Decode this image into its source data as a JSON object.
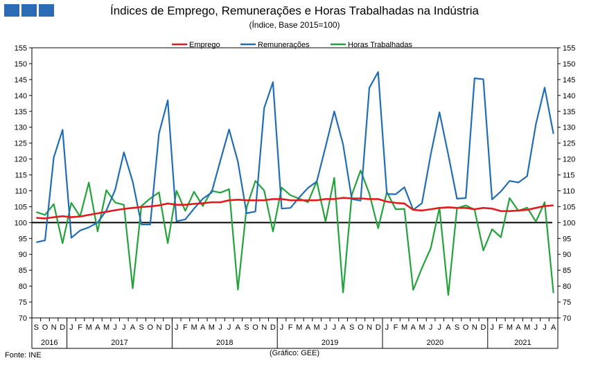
{
  "header": {
    "title": "Índices de Emprego, Remunerações e Horas Trabalhadas na Indústria",
    "subtitle": "(Índice, Base 2015=100)"
  },
  "logo": {
    "colors": [
      "#2b6bb5",
      "#2b6bb5",
      "#2b6bb5"
    ]
  },
  "footer": {
    "source": "Fonte: INE",
    "credit": "(Gráfico: GEE)"
  },
  "chart_data": {
    "type": "line",
    "ylim": [
      70,
      155
    ],
    "yticks": [
      70,
      75,
      80,
      85,
      90,
      95,
      100,
      105,
      110,
      115,
      120,
      125,
      130,
      135,
      140,
      145,
      150,
      155
    ],
    "month_labels": [
      "S",
      "O",
      "N",
      "D",
      "J",
      "F",
      "M",
      "A",
      "M",
      "J",
      "J",
      "A",
      "S",
      "O",
      "N",
      "D",
      "J",
      "F",
      "M",
      "A",
      "M",
      "J",
      "J",
      "A",
      "S",
      "O",
      "N",
      "D",
      "J",
      "F",
      "M",
      "A",
      "M",
      "J",
      "J",
      "A",
      "S",
      "O",
      "N",
      "D",
      "J",
      "F",
      "M",
      "A",
      "M",
      "J",
      "J",
      "A",
      "S",
      "O",
      "N",
      "D",
      "J",
      "F",
      "M",
      "A",
      "M",
      "J",
      "J",
      "A"
    ],
    "years": [
      {
        "label": "2016",
        "start": 0,
        "count": 4
      },
      {
        "label": "2017",
        "start": 4,
        "count": 12
      },
      {
        "label": "2018",
        "start": 16,
        "count": 12
      },
      {
        "label": "2019",
        "start": 28,
        "count": 12
      },
      {
        "label": "2020",
        "start": 40,
        "count": 12
      },
      {
        "label": "2021",
        "start": 52,
        "count": 8
      }
    ],
    "reference_line": 100,
    "legend_position": "top-center",
    "series": [
      {
        "name": "Emprego",
        "color": "#e31a1c",
        "values": [
          101.5,
          101.3,
          101.7,
          102.0,
          101.7,
          101.9,
          102.4,
          102.9,
          103.4,
          103.9,
          104.3,
          104.6,
          104.9,
          105.1,
          105.4,
          106.0,
          105.6,
          105.6,
          105.9,
          106.1,
          106.4,
          106.4,
          107.0,
          107.2,
          107.0,
          107.0,
          107.0,
          107.4,
          107.4,
          107.0,
          107.0,
          107.0,
          107.0,
          107.4,
          107.4,
          107.8,
          107.6,
          107.6,
          107.4,
          107.4,
          106.6,
          106.2,
          106.0,
          104.0,
          103.8,
          104.2,
          104.6,
          104.8,
          104.6,
          104.6,
          104.2,
          104.6,
          104.4,
          103.6,
          103.6,
          103.8,
          104.0,
          104.6,
          105.2,
          105.4
        ]
      },
      {
        "name": "Remunerações",
        "color": "#1f6db5",
        "values": [
          93.8,
          94.4,
          120.5,
          129.2,
          95.2,
          97.5,
          98.5,
          100.0,
          103.8,
          110.3,
          122.1,
          112.9,
          99.4,
          99.4,
          128.0,
          138.5,
          100.4,
          101.0,
          104.4,
          107.5,
          109.4,
          119.5,
          129.3,
          119.2,
          102.9,
          103.5,
          136.0,
          144.2,
          104.4,
          104.6,
          107.9,
          110.9,
          112.9,
          123.8,
          135.0,
          124.6,
          107.4,
          106.9,
          142.4,
          147.4,
          109.0,
          108.9,
          111.1,
          104.0,
          106.1,
          121.4,
          134.7,
          121.4,
          107.5,
          107.7,
          145.4,
          145.1,
          107.3,
          109.8,
          113.1,
          112.6,
          114.6,
          131.0,
          142.5,
          127.9
        ]
      },
      {
        "name": "Horas Trabalhadas",
        "color": "#22a33a",
        "values": [
          103.3,
          102.4,
          105.8,
          93.5,
          106.2,
          101.9,
          112.6,
          97.2,
          110.2,
          106.3,
          105.6,
          79.3,
          105.2,
          107.6,
          109.5,
          93.5,
          110.0,
          103.7,
          109.7,
          105.2,
          110.0,
          109.4,
          110.5,
          78.9,
          104.8,
          113.1,
          110.1,
          97.2,
          111.0,
          108.6,
          107.5,
          106.4,
          113.0,
          100.3,
          114.1,
          78.0,
          108.7,
          116.4,
          109.1,
          98.2,
          109.6,
          104.2,
          104.3,
          78.8,
          85.7,
          91.9,
          104.7,
          77.2,
          104.5,
          105.4,
          104.1,
          91.2,
          97.9,
          95.4,
          107.7,
          103.7,
          104.7,
          100.3,
          106.4,
          77.8
        ]
      }
    ]
  }
}
